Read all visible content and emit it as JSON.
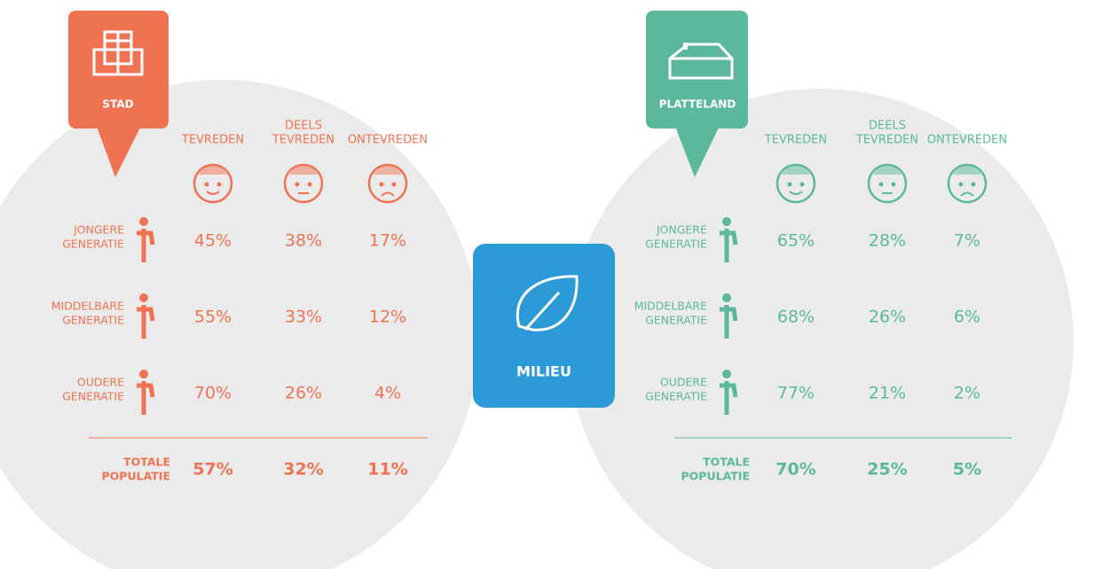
{
  "stad": {
    "label": "STAD",
    "columns": [
      [
        "TEVREDEN"
      ],
      [
        "DEELS",
        "TEVREDEN"
      ],
      [
        "ONTEVREDEN"
      ]
    ],
    "rows": [
      {
        "label": [
          "JONGERE",
          "GENERATIE"
        ],
        "values": [
          "45%",
          "38%",
          "17%"
        ]
      },
      {
        "label": [
          "MIDDELBARE",
          "GENERATIE"
        ],
        "values": [
          "55%",
          "33%",
          "12%"
        ]
      },
      {
        "label": [
          "OUDERE",
          "GENERATIE"
        ],
        "values": [
          "70%",
          "26%",
          "4%"
        ]
      }
    ],
    "total": {
      "label": [
        "TOTALE",
        "POPULATIE"
      ],
      "values": [
        "57%",
        "32%",
        "11%"
      ]
    }
  },
  "platteland": {
    "label": "PLATTELAND",
    "columns": [
      [
        "TEVREDEN"
      ],
      [
        "DEELS",
        "TEVREDEN"
      ],
      [
        "ONTEVREDEN"
      ]
    ],
    "rows": [
      {
        "label": [
          "JONGERE",
          "GENERATIE"
        ],
        "values": [
          "65%",
          "28%",
          "7%"
        ]
      },
      {
        "label": [
          "MIDDELBARE",
          "GENERATIE"
        ],
        "values": [
          "68%",
          "26%",
          "6%"
        ]
      },
      {
        "label": [
          "OUDERE",
          "GENERATIE"
        ],
        "values": [
          "77%",
          "21%",
          "2%"
        ]
      }
    ],
    "total": {
      "label": [
        "TOTALE",
        "POPULATIE"
      ],
      "values": [
        "70%",
        "25%",
        "5%"
      ]
    }
  },
  "center": {
    "label": "MILIEU"
  }
}
